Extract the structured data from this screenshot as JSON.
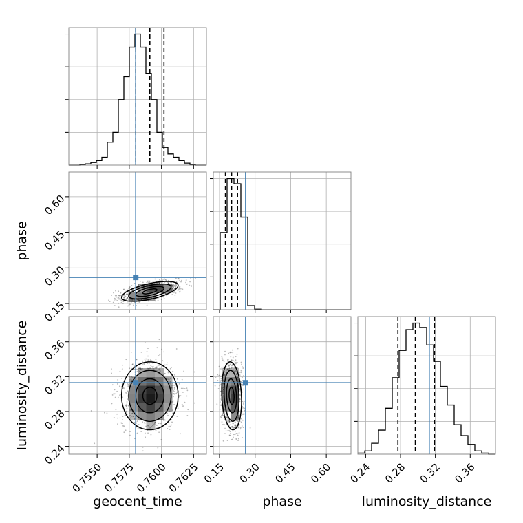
{
  "chart_data": {
    "type": "corner",
    "parameters": [
      "geocent_time",
      "phase",
      "luminosity_distance"
    ],
    "truth_color": "#4682b4",
    "truths": {
      "geocent_time": 0.758,
      "phase": 0.26,
      "luminosity_distance": 0.313
    },
    "quantiles": {
      "geocent_time": [
        0.758,
        0.7591,
        0.7602
      ],
      "phase": [
        0.175,
        0.201,
        0.226
      ],
      "luminosity_distance": [
        0.277,
        0.297,
        0.319
      ]
    },
    "ranges": {
      "geocent_time": [
        0.7528,
        0.7635
      ],
      "phase": [
        0.124,
        0.704
      ],
      "luminosity_distance": [
        0.231,
        0.389
      ]
    },
    "ticks": {
      "geocent_time": [
        "0.7550",
        "0.7575",
        "0.7600",
        "0.7625"
      ],
      "phase": [
        "0.15",
        "0.30",
        "0.45",
        "0.60"
      ],
      "luminosity_distance": [
        "0.24",
        "0.28",
        "0.32",
        "0.36"
      ]
    },
    "histograms": {
      "geocent_time": [
        0,
        0,
        1,
        2,
        4,
        7,
        12,
        35,
        50,
        100,
        135,
        180,
        200,
        180,
        140,
        100,
        50,
        27,
        17,
        12,
        7,
        3,
        1,
        0,
        0
      ],
      "phase": [
        0,
        150,
        255,
        245,
        180,
        8,
        1,
        0,
        0,
        0,
        0,
        0,
        0,
        0,
        0,
        0,
        0,
        0,
        0,
        0
      ],
      "luminosity_distance": [
        1,
        3,
        10,
        22,
        42,
        70,
        95,
        114,
        120,
        116,
        100,
        85,
        62,
        45,
        27,
        17,
        9,
        3,
        1,
        0
      ]
    },
    "grid": true
  }
}
